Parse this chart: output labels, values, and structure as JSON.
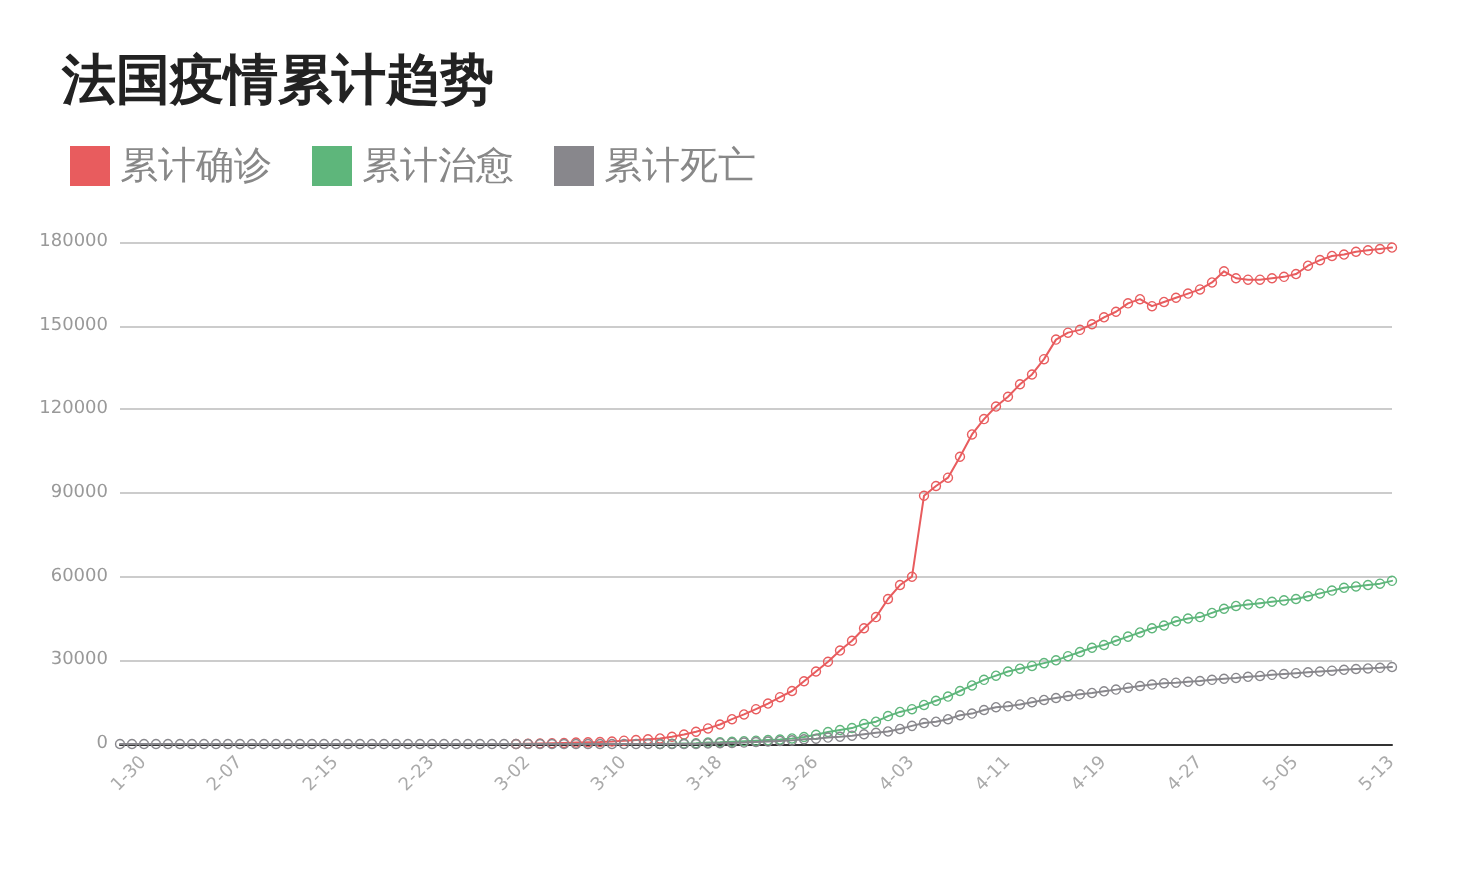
{
  "chart_data": {
    "type": "line",
    "title": "法国疫情累计趋势",
    "categories": [
      null,
      null,
      "1-30",
      null,
      null,
      null,
      null,
      null,
      null,
      null,
      "2-07",
      null,
      null,
      null,
      null,
      null,
      null,
      null,
      "2-15",
      null,
      null,
      null,
      null,
      null,
      null,
      null,
      "2-23",
      null,
      null,
      null,
      null,
      null,
      null,
      null,
      "3-02",
      null,
      null,
      null,
      null,
      null,
      null,
      null,
      "3-10",
      null,
      null,
      null,
      null,
      null,
      null,
      null,
      "3-18",
      null,
      null,
      null,
      null,
      null,
      null,
      null,
      "3-26",
      null,
      null,
      null,
      null,
      null,
      null,
      null,
      "4-03",
      null,
      null,
      null,
      null,
      null,
      null,
      null,
      "4-11",
      null,
      null,
      null,
      null,
      null,
      null,
      null,
      "4-19",
      null,
      null,
      null,
      null,
      null,
      null,
      null,
      "4-27",
      null,
      null,
      null,
      null,
      null,
      null,
      null,
      "5-05",
      null,
      null,
      null,
      null,
      null,
      null,
      null,
      "5-13"
    ],
    "series": [
      {
        "name": "累计确诊",
        "color": "#e85c5e",
        "values": [
          null,
          null,
          null,
          null,
          null,
          null,
          null,
          null,
          null,
          null,
          null,
          null,
          null,
          null,
          null,
          null,
          null,
          null,
          null,
          null,
          null,
          null,
          null,
          null,
          null,
          null,
          null,
          null,
          null,
          null,
          null,
          null,
          null,
          0,
          100,
          200,
          300,
          400,
          500,
          600,
          700,
          900,
          1200,
          1400,
          1700,
          2000,
          2600,
          3400,
          4400,
          5600,
          7000,
          8900,
          10600,
          12500,
          14500,
          16800,
          19000,
          22500,
          26000,
          29500,
          33500,
          37000,
          41500,
          45500,
          52000,
          57000,
          60000,
          89000,
          92500,
          95500,
          103000,
          111000,
          116500,
          121000,
          124500,
          129000,
          132500,
          138000,
          145000,
          147500,
          148500,
          150500,
          153000,
          155000,
          158000,
          159500,
          157000,
          158500,
          160000,
          161500,
          163000,
          165500,
          169500,
          167000,
          166500,
          166500,
          167000,
          167500,
          168500,
          171500,
          173500,
          175000,
          175500,
          176500,
          177000,
          177500,
          178000
        ]
      },
      {
        "name": "累计治愈",
        "color": "#5eb67b",
        "values": [
          null,
          null,
          null,
          null,
          null,
          null,
          null,
          null,
          null,
          null,
          null,
          null,
          null,
          null,
          null,
          null,
          null,
          null,
          null,
          null,
          null,
          null,
          null,
          null,
          null,
          null,
          null,
          null,
          null,
          null,
          null,
          null,
          null,
          null,
          null,
          null,
          null,
          null,
          null,
          null,
          null,
          null,
          null,
          null,
          null,
          0,
          100,
          200,
          300,
          500,
          600,
          800,
          1000,
          1200,
          1400,
          1600,
          2000,
          2500,
          3300,
          4300,
          5000,
          5700,
          7200,
          8000,
          10000,
          11500,
          12500,
          14000,
          15500,
          17000,
          19000,
          21000,
          23000,
          24500,
          26000,
          27000,
          28000,
          29000,
          30000,
          31500,
          33000,
          34500,
          35500,
          37000,
          38500,
          40000,
          41500,
          42500,
          44000,
          45000,
          45500,
          47000,
          48500,
          49500,
          50000,
          50500,
          51000,
          51500,
          52000,
          53000,
          54000,
          55000,
          56000,
          56500,
          57000,
          57500,
          58500
        ]
      },
      {
        "name": "累计死亡",
        "color": "#88878c",
        "values": [
          0,
          0,
          0,
          0,
          0,
          0,
          0,
          0,
          0,
          0,
          0,
          0,
          0,
          0,
          0,
          0,
          0,
          0,
          0,
          0,
          0,
          0,
          0,
          0,
          0,
          0,
          0,
          0,
          0,
          0,
          0,
          0,
          0,
          0,
          0,
          0,
          0,
          0,
          0,
          0,
          0,
          0,
          0,
          0,
          0,
          0,
          0,
          0,
          0,
          200,
          300,
          400,
          500,
          700,
          900,
          1100,
          1300,
          1700,
          1900,
          2300,
          2600,
          3000,
          3500,
          4000,
          4500,
          5400,
          6500,
          7500,
          8000,
          8900,
          10300,
          10900,
          12200,
          13200,
          13500,
          14200,
          15000,
          15800,
          16500,
          17200,
          17800,
          18300,
          18900,
          19500,
          20200,
          20800,
          21300,
          21800,
          22000,
          22300,
          22600,
          23000,
          23400,
          23700,
          24100,
          24400,
          24800,
          25100,
          25400,
          25700,
          26000,
          26300,
          26600,
          26900,
          27100,
          27300,
          27600
        ]
      }
    ],
    "ylim": [
      0,
      180000
    ],
    "yticks": [
      0,
      30000,
      60000,
      90000,
      120000,
      150000,
      180000
    ],
    "grid": "y",
    "legend": "top left",
    "marker": "circle",
    "line_style": "solid"
  }
}
